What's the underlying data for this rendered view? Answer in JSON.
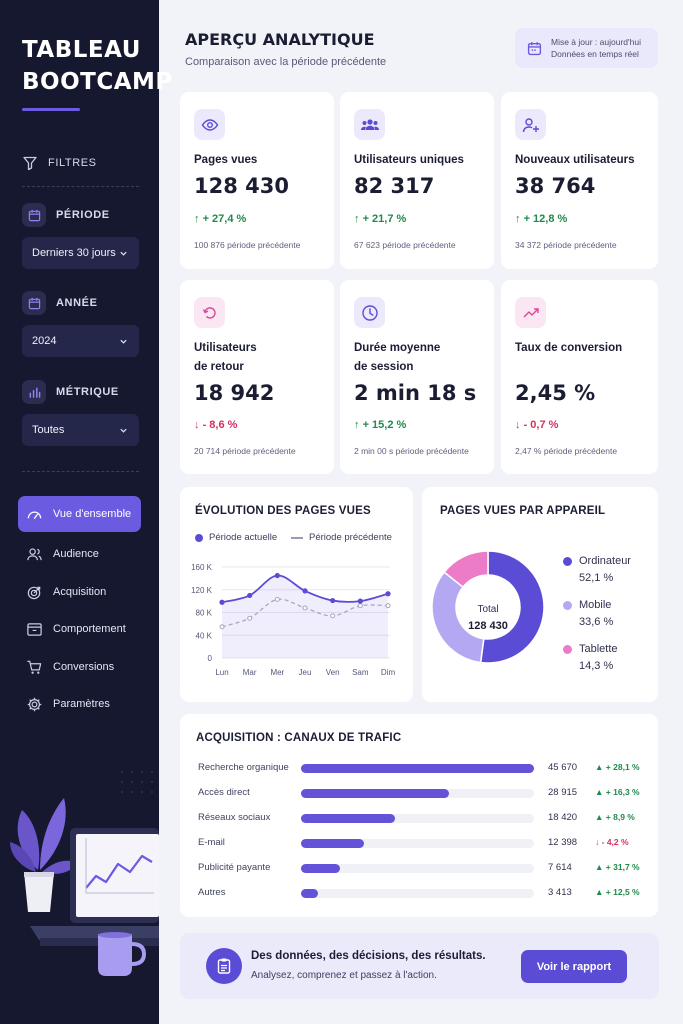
{
  "sidebar": {
    "brand_line1": "TABLEAU",
    "brand_line2": "BOOTCAMP",
    "filters_label": "FILTRES",
    "period_label": "PÉRIODE",
    "period_value": "Derniers 30 jours",
    "year_label": "ANNÉE",
    "year_value": "2024",
    "metric_label": "MÉTRIQUE",
    "metric_value": "Toutes",
    "nav": [
      {
        "label": "Vue d'ensemble",
        "icon": "gauge-icon",
        "active": true
      },
      {
        "label": "Audience",
        "icon": "users-icon"
      },
      {
        "label": "Acquisition",
        "icon": "target-icon"
      },
      {
        "label": "Comportement",
        "icon": "browser-icon"
      },
      {
        "label": "Conversions",
        "icon": "cart-icon"
      },
      {
        "label": "Paramètres",
        "icon": "gear-icon"
      }
    ]
  },
  "header": {
    "title": "APERÇU ANALYTIQUE",
    "subtitle": "Comparaison avec la période précédente",
    "update_line1": "Mise à jour : aujourd'hui",
    "update_line2": "Données en temps réel"
  },
  "kpis": [
    {
      "label": "Pages vues",
      "value": "128 430",
      "delta": "+ 27,4 %",
      "direction": "up",
      "prev_value": "100 876",
      "prev_suffix": "période précédente",
      "icon": "eye-icon"
    },
    {
      "label": "Utilisateurs uniques",
      "value": "82 317",
      "delta": "+ 21,7 %",
      "direction": "up",
      "prev_value": "67 623",
      "prev_suffix": "période précédente",
      "icon": "group-icon"
    },
    {
      "label": "Nouveaux utilisateurs",
      "value": "38 764",
      "delta": "+ 12,8 %",
      "direction": "up",
      "prev_value": "34 372",
      "prev_suffix": "période précédente",
      "icon": "user-plus-icon"
    },
    {
      "label_line1": "Utilisateurs",
      "label_line2": "de retour",
      "value": "18 942",
      "delta": "- 8,6 %",
      "direction": "down",
      "prev_value": "20 714",
      "prev_suffix": "période précédente",
      "icon": "refresh-icon"
    },
    {
      "label_line1": "Durée moyenne",
      "label_line2": "de session",
      "value": "2 min 18 s",
      "delta": "+ 15,2 %",
      "direction": "up",
      "prev_value": "2 min 00 s",
      "prev_suffix": "période précédente",
      "icon": "clock-icon"
    },
    {
      "label_line1": "Taux de conversion",
      "value": "2,45 %",
      "delta": "- 0,7 %",
      "direction": "down",
      "prev_value": "2,47 %",
      "prev_suffix": "période précédente",
      "icon": "trend-icon"
    }
  ],
  "line_chart_title": "ÉVOLUTION DES PAGES VUES",
  "donut_title": "PAGES VUES PAR APPAREIL",
  "donut_center_label": "Total",
  "donut_center_value": "128 430",
  "acquisition_title": "ACQUISITION : CANAUX DE TRAFIC",
  "acquisition": [
    {
      "name": "Recherche organique",
      "value": 45670,
      "value_label": "45 670",
      "delta": "+ 28,1 %",
      "direction": "up"
    },
    {
      "name": "Accès direct",
      "value": 28915,
      "value_label": "28 915",
      "delta": "+ 16,3 %",
      "direction": "up"
    },
    {
      "name": "Réseaux sociaux",
      "value": 18420,
      "value_label": "18 420",
      "delta": "+ 8,9 %",
      "direction": "up"
    },
    {
      "name": "E-mail",
      "value": 12398,
      "value_label": "12 398",
      "delta": "- 4,2 %",
      "direction": "down"
    },
    {
      "name": "Publicité payante",
      "value": 7614,
      "value_label": "7 614",
      "delta": "+ 31,7 %",
      "direction": "up"
    },
    {
      "name": "Autres",
      "value": 3413,
      "value_label": "3 413",
      "delta": "+ 12,5 %",
      "direction": "up"
    }
  ],
  "cta": {
    "title": "Des données, des décisions, des résultats.",
    "subtitle": "Analysez, comprenez et passez à l'action.",
    "button": "Voir le rapport"
  },
  "colors": {
    "accent": "#6452d8",
    "sidebar_bg": "#15182f",
    "up": "#1f8a4c",
    "down": "#d62f5f",
    "desktop": "#5b4cd6",
    "mobile": "#b4a8f2",
    "tablet": "#ec7cc8"
  },
  "chart_data": [
    {
      "type": "line",
      "title": "ÉVOLUTION DES PAGES VUES",
      "categories": [
        "Lun",
        "Mar",
        "Mer",
        "Jeu",
        "Ven",
        "Sam",
        "Dim"
      ],
      "series": [
        {
          "name": "Période actuelle",
          "values": [
            98,
            110,
            145,
            118,
            101,
            100,
            113
          ],
          "style": "solid"
        },
        {
          "name": "Période précédente",
          "values": [
            55,
            70,
            103,
            88,
            74,
            92,
            92
          ],
          "style": "dashed"
        }
      ],
      "yticks": [
        "0",
        "40 K",
        "80 K",
        "120 K",
        "160 K"
      ],
      "ylim": [
        0,
        160
      ],
      "grid": true,
      "legend": "top"
    },
    {
      "type": "pie",
      "title": "PAGES VUES PAR APPAREIL",
      "donut": true,
      "series": [
        {
          "name": "Ordinateur",
          "value": 52.1,
          "label": "52,1 %"
        },
        {
          "name": "Mobile",
          "value": 33.6,
          "label": "33,6 %"
        },
        {
          "name": "Tablette",
          "value": 14.3,
          "label": "14,3 %"
        }
      ],
      "legend": "right"
    },
    {
      "type": "bar",
      "title": "ACQUISITION : CANAUX DE TRAFIC",
      "orientation": "horizontal",
      "categories": [
        "Recherche organique",
        "Accès direct",
        "Réseaux sociaux",
        "E-mail",
        "Publicité payante",
        "Autres"
      ],
      "values": [
        45670,
        28915,
        18420,
        12398,
        7614,
        3413
      ]
    }
  ]
}
